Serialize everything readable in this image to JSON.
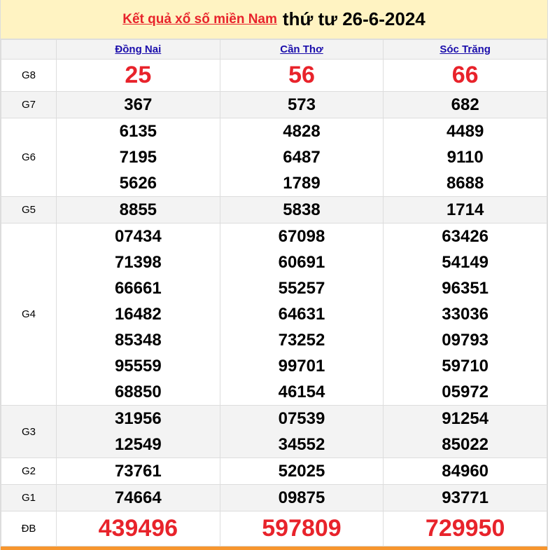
{
  "title": {
    "link": "Kết quả xổ số miền Nam",
    "date": "thứ tư 26-6-2024"
  },
  "provinces": [
    "Đồng Nai",
    "Cần Thơ",
    "Sóc Trăng"
  ],
  "colors": {
    "header_bg": "#fff3c2",
    "accent_red": "#e8232b",
    "link_blue": "#1a0dab",
    "bottom_bar": "#f7962e"
  },
  "prizes": [
    {
      "label": "G8",
      "style": "big",
      "values": [
        [
          "25"
        ],
        [
          "56"
        ],
        [
          "66"
        ]
      ]
    },
    {
      "label": "G7",
      "style": "num",
      "values": [
        [
          "367"
        ],
        [
          "573"
        ],
        [
          "682"
        ]
      ]
    },
    {
      "label": "G6",
      "style": "num",
      "values": [
        [
          "6135",
          "7195",
          "5626"
        ],
        [
          "4828",
          "6487",
          "1789"
        ],
        [
          "4489",
          "9110",
          "8688"
        ]
      ]
    },
    {
      "label": "G5",
      "style": "num",
      "values": [
        [
          "8855"
        ],
        [
          "5838"
        ],
        [
          "1714"
        ]
      ]
    },
    {
      "label": "G4",
      "style": "num",
      "values": [
        [
          "07434",
          "71398",
          "66661",
          "16482",
          "85348",
          "95559",
          "68850"
        ],
        [
          "67098",
          "60691",
          "55257",
          "64631",
          "73252",
          "99701",
          "46154"
        ],
        [
          "63426",
          "54149",
          "96351",
          "33036",
          "09793",
          "59710",
          "05972"
        ]
      ]
    },
    {
      "label": "G3",
      "style": "num",
      "values": [
        [
          "31956",
          "12549"
        ],
        [
          "07539",
          "34552"
        ],
        [
          "91254",
          "85022"
        ]
      ]
    },
    {
      "label": "G2",
      "style": "num",
      "values": [
        [
          "73761"
        ],
        [
          "52025"
        ],
        [
          "84960"
        ]
      ]
    },
    {
      "label": "G1",
      "style": "num",
      "values": [
        [
          "74664"
        ],
        [
          "09875"
        ],
        [
          "93771"
        ]
      ]
    },
    {
      "label": "ĐB",
      "style": "db",
      "values": [
        [
          "439496"
        ],
        [
          "597809"
        ],
        [
          "729950"
        ]
      ]
    }
  ]
}
